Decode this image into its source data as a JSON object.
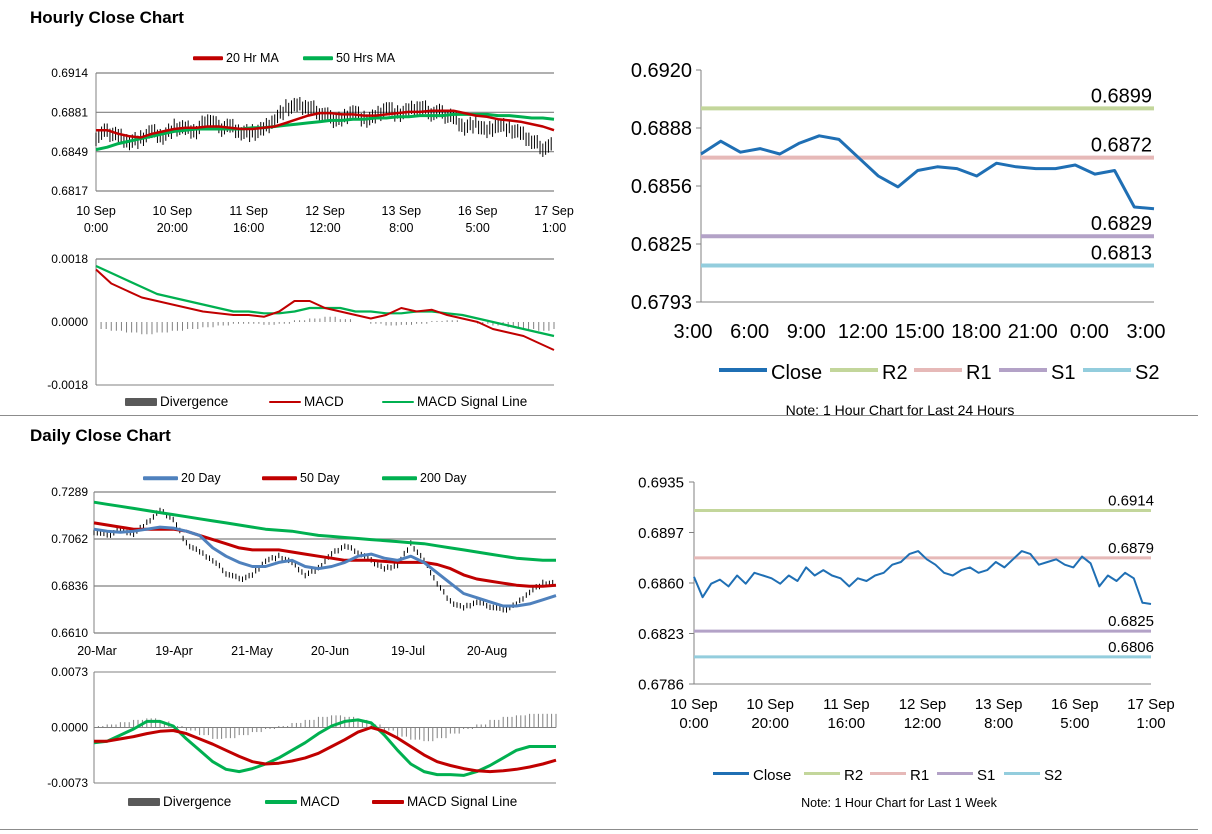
{
  "sections": {
    "hourly_title": "Hourly Close Chart",
    "daily_title": "Daily Close Chart"
  },
  "colors": {
    "ma20": "#c00000",
    "ma50": "#00b050",
    "price": "#000000",
    "divergence": "#808080",
    "macd_red": "#c00000",
    "signal_green": "#00b050",
    "close_blue": "#1f6fb4",
    "r2": "#c3d69b",
    "r1": "#e6b9b8",
    "s1": "#b3a2c7",
    "s2": "#93cddd",
    "daily_20": "#4f81bd",
    "daily_50": "#c00000",
    "daily_200": "#00b050"
  },
  "chart_data": [
    {
      "id": "hourly-price",
      "type": "line",
      "legend": [
        "20 Hr MA",
        "50 Hrs MA"
      ],
      "y_ticks": [
        "0.6914",
        "0.6881",
        "0.6849",
        "0.6817"
      ],
      "ylim": [
        0.6817,
        0.6914
      ],
      "x_ticks": [
        [
          "10 Sep",
          "0:00"
        ],
        [
          "10 Sep",
          "20:00"
        ],
        [
          "11 Sep",
          "16:00"
        ],
        [
          "12 Sep",
          "12:00"
        ],
        [
          "13 Sep",
          "8:00"
        ],
        [
          "16 Sep",
          "5:00"
        ],
        [
          "17 Sep",
          "1:00"
        ]
      ],
      "price": [
        0.6862,
        0.6866,
        0.6863,
        0.6858,
        0.686,
        0.6866,
        0.6862,
        0.6869,
        0.6868,
        0.6866,
        0.6877,
        0.6869,
        0.6871,
        0.6866,
        0.6865,
        0.6868,
        0.6876,
        0.6885,
        0.6887,
        0.6886,
        0.6882,
        0.6877,
        0.6876,
        0.6884,
        0.6876,
        0.6878,
        0.6886,
        0.688,
        0.6883,
        0.6886,
        0.6882,
        0.6881,
        0.6878,
        0.687,
        0.6873,
        0.6866,
        0.6872,
        0.6868,
        0.6864,
        0.6858,
        0.6853,
        0.6854
      ],
      "ma20": [
        0.6867,
        0.6867,
        0.6864,
        0.6862,
        0.6861,
        0.6864,
        0.6866,
        0.6868,
        0.6869,
        0.6869,
        0.687,
        0.687,
        0.6869,
        0.6868,
        0.6868,
        0.6869,
        0.687,
        0.6873,
        0.6876,
        0.6879,
        0.6881,
        0.6881,
        0.688,
        0.688,
        0.6879,
        0.6879,
        0.688,
        0.6881,
        0.6882,
        0.6882,
        0.6883,
        0.6883,
        0.6883,
        0.6881,
        0.6879,
        0.6878,
        0.6876,
        0.6875,
        0.6874,
        0.6872,
        0.687,
        0.6867
      ],
      "ma50": [
        0.6851,
        0.6853,
        0.6856,
        0.6858,
        0.686,
        0.6862,
        0.6864,
        0.6866,
        0.6867,
        0.6868,
        0.6868,
        0.6868,
        0.6868,
        0.6868,
        0.6869,
        0.6869,
        0.687,
        0.6871,
        0.6872,
        0.6873,
        0.6874,
        0.6875,
        0.6875,
        0.6876,
        0.6876,
        0.6877,
        0.6877,
        0.6878,
        0.6878,
        0.6879,
        0.6879,
        0.6879,
        0.688,
        0.688,
        0.688,
        0.688,
        0.6879,
        0.6879,
        0.6878,
        0.6877,
        0.6877,
        0.6876
      ]
    },
    {
      "id": "hourly-macd",
      "type": "line",
      "legend": [
        "Divergence",
        "MACD",
        "MACD Signal Line"
      ],
      "y_ticks": [
        "0.0018",
        "0.0000",
        "-0.0018"
      ],
      "ylim": [
        -0.0018,
        0.0018
      ],
      "divergence": [
        -0.0002,
        -0.00025,
        -0.0003,
        -0.00035,
        -0.0003,
        -0.00025,
        -0.0002,
        -0.00015,
        -0.0001,
        -5e-05,
        -5e-05,
        -8e-05,
        -5e-05,
        5e-05,
        0.0001,
        0.00015,
        8e-05,
        0.0,
        -5e-05,
        -0.0001,
        -8e-05,
        -5e-05,
        3e-05,
        5e-05,
        0.0,
        -5e-05,
        -0.0001,
        -0.00015,
        -0.0002,
        -0.00025,
        -0.0002
      ],
      "macd": [
        0.0015,
        0.0011,
        0.0009,
        0.0007,
        0.0006,
        0.0005,
        0.0004,
        0.0003,
        0.00025,
        0.0002,
        0.0002,
        0.00015,
        0.0003,
        0.0006,
        0.0006,
        0.0004,
        0.0003,
        0.0002,
        0.0001,
        0.0002,
        0.0004,
        0.0003,
        0.00035,
        0.0002,
        0.0001,
        0.0,
        -0.0002,
        -0.0003,
        -0.0004,
        -0.0006,
        -0.0008
      ],
      "signal": [
        0.0016,
        0.0014,
        0.0012,
        0.001,
        0.0008,
        0.0007,
        0.0006,
        0.0005,
        0.0004,
        0.0003,
        0.0003,
        0.00025,
        0.00025,
        0.0003,
        0.0004,
        0.0004,
        0.0004,
        0.0003,
        0.0003,
        0.00025,
        0.00025,
        0.0003,
        0.0003,
        0.00025,
        0.0002,
        0.0001,
        0.0,
        -0.0001,
        -0.0002,
        -0.0003,
        -0.0004
      ]
    },
    {
      "id": "hourly-close",
      "type": "line",
      "y_ticks": [
        "0.6920",
        "0.6888",
        "0.6856",
        "0.6825",
        "0.6793"
      ],
      "ylim": [
        0.6793,
        0.692
      ],
      "x_ticks": [
        "3:00",
        "6:00",
        "9:00",
        "12:00",
        "15:00",
        "18:00",
        "21:00",
        "0:00",
        "3:00"
      ],
      "levels": [
        {
          "name": "R2",
          "value": 0.6899,
          "label": "0.6899"
        },
        {
          "name": "R1",
          "value": 0.6872,
          "label": "0.6872"
        },
        {
          "name": "S1",
          "value": 0.6829,
          "label": "0.6829"
        },
        {
          "name": "S2",
          "value": 0.6813,
          "label": "0.6813"
        }
      ],
      "close": [
        0.6874,
        0.6881,
        0.6875,
        0.6877,
        0.6874,
        0.688,
        0.6884,
        0.6882,
        0.6872,
        0.6862,
        0.6856,
        0.6865,
        0.6867,
        0.6866,
        0.6862,
        0.6869,
        0.6867,
        0.6866,
        0.6866,
        0.6868,
        0.6863,
        0.6865,
        0.6845,
        0.6844
      ],
      "legend": [
        "Close",
        "R2",
        "R1",
        "S1",
        "S2"
      ],
      "note": "Note: 1 Hour Chart for Last 24 Hours"
    },
    {
      "id": "daily-price",
      "type": "line",
      "legend": [
        "20 Day",
        "50 Day",
        "200 Day"
      ],
      "y_ticks": [
        "0.7289",
        "0.7062",
        "0.6836",
        "0.6610"
      ],
      "ylim": [
        0.661,
        0.7289
      ],
      "x_ticks": [
        "20-Mar",
        "19-Apr",
        "21-May",
        "20-Jun",
        "19-Jul",
        "20-Aug"
      ],
      "price": [
        0.71,
        0.708,
        0.711,
        0.709,
        0.714,
        0.72,
        0.716,
        0.704,
        0.7,
        0.696,
        0.69,
        0.687,
        0.689,
        0.696,
        0.698,
        0.695,
        0.689,
        0.692,
        0.699,
        0.703,
        0.7,
        0.696,
        0.692,
        0.694,
        0.704,
        0.696,
        0.685,
        0.676,
        0.673,
        0.676,
        0.674,
        0.672,
        0.675,
        0.681,
        0.685,
        0.685
      ],
      "ma20": [
        0.711,
        0.71,
        0.7095,
        0.71,
        0.711,
        0.712,
        0.7115,
        0.71,
        0.708,
        0.702,
        0.698,
        0.695,
        0.693,
        0.693,
        0.695,
        0.696,
        0.693,
        0.692,
        0.693,
        0.695,
        0.698,
        0.699,
        0.697,
        0.696,
        0.698,
        0.695,
        0.69,
        0.685,
        0.68,
        0.678,
        0.676,
        0.674,
        0.674,
        0.675,
        0.677,
        0.679
      ],
      "ma50": [
        0.714,
        0.713,
        0.712,
        0.711,
        0.711,
        0.711,
        0.711,
        0.71,
        0.708,
        0.706,
        0.704,
        0.702,
        0.701,
        0.701,
        0.701,
        0.7,
        0.699,
        0.698,
        0.697,
        0.696,
        0.696,
        0.696,
        0.6955,
        0.695,
        0.695,
        0.695,
        0.694,
        0.692,
        0.689,
        0.687,
        0.686,
        0.685,
        0.684,
        0.6835,
        0.6835,
        0.684
      ],
      "ma200": [
        0.724,
        0.723,
        0.722,
        0.721,
        0.72,
        0.719,
        0.718,
        0.717,
        0.716,
        0.715,
        0.714,
        0.713,
        0.712,
        0.711,
        0.7105,
        0.71,
        0.709,
        0.708,
        0.7075,
        0.707,
        0.7065,
        0.706,
        0.7055,
        0.705,
        0.7045,
        0.704,
        0.703,
        0.702,
        0.701,
        0.7,
        0.699,
        0.698,
        0.697,
        0.6965,
        0.696,
        0.696
      ]
    },
    {
      "id": "daily-macd",
      "type": "line",
      "legend": [
        "Divergence",
        "MACD",
        "MACD Signal Line"
      ],
      "y_ticks": [
        "0.0073",
        "0.0000",
        "-0.0073"
      ],
      "ylim": [
        -0.0073,
        0.0073
      ],
      "divergence": [
        0.0002,
        0.0004,
        0.0007,
        0.001,
        0.0012,
        0.0008,
        0.0002,
        -0.0004,
        -0.001,
        -0.0015,
        -0.0014,
        -0.001,
        -0.0006,
        -0.0002,
        0.0002,
        0.0006,
        0.001,
        0.0014,
        0.0016,
        0.0014,
        0.001,
        0.0004,
        -0.0004,
        -0.0012,
        -0.0016,
        -0.0018,
        -0.0014,
        -0.0008,
        -0.0002,
        0.0004,
        0.001,
        0.0014,
        0.0016,
        0.0018,
        0.0018,
        0.0018
      ],
      "macd": [
        -0.002,
        -0.0018,
        -0.001,
        -0.0002,
        0.0008,
        0.0008,
        0.0002,
        -0.0015,
        -0.003,
        -0.0045,
        -0.0055,
        -0.0058,
        -0.0054,
        -0.0048,
        -0.004,
        -0.003,
        -0.002,
        -0.0008,
        0.0002,
        0.0008,
        0.001,
        0.0006,
        -0.001,
        -0.003,
        -0.0048,
        -0.0058,
        -0.0062,
        -0.0062,
        -0.0063,
        -0.0058,
        -0.005,
        -0.004,
        -0.003,
        -0.0025,
        -0.0025,
        -0.0025
      ],
      "signal": [
        -0.0018,
        -0.0018,
        -0.0015,
        -0.0012,
        -0.0008,
        -0.0005,
        -0.0004,
        -0.0008,
        -0.0015,
        -0.0022,
        -0.003,
        -0.0038,
        -0.0045,
        -0.0048,
        -0.0047,
        -0.0044,
        -0.004,
        -0.0034,
        -0.0025,
        -0.0016,
        -0.0006,
        0.0,
        -0.0005,
        -0.0014,
        -0.0025,
        -0.0036,
        -0.0045,
        -0.005,
        -0.0054,
        -0.0057,
        -0.0058,
        -0.0057,
        -0.0055,
        -0.0052,
        -0.0048,
        -0.0043
      ]
    },
    {
      "id": "weekly-close",
      "type": "line",
      "y_ticks": [
        "0.6935",
        "0.6897",
        "0.6860",
        "0.6823",
        "0.6786"
      ],
      "ylim": [
        0.6786,
        0.6935
      ],
      "x_ticks": [
        [
          "10 Sep",
          "0:00"
        ],
        [
          "10 Sep",
          "20:00"
        ],
        [
          "11 Sep",
          "16:00"
        ],
        [
          "12 Sep",
          "12:00"
        ],
        [
          "13 Sep",
          "8:00"
        ],
        [
          "16 Sep",
          "5:00"
        ],
        [
          "17 Sep",
          "1:00"
        ]
      ],
      "levels": [
        {
          "name": "R2",
          "value": 0.6914,
          "label": "0.6914"
        },
        {
          "name": "R1",
          "value": 0.6879,
          "label": "0.6879"
        },
        {
          "name": "S1",
          "value": 0.6825,
          "label": "0.6825"
        },
        {
          "name": "S2",
          "value": 0.6806,
          "label": "0.6806"
        }
      ],
      "close": [
        0.6865,
        0.685,
        0.686,
        0.6863,
        0.6858,
        0.6866,
        0.686,
        0.6868,
        0.6866,
        0.6864,
        0.686,
        0.6866,
        0.6862,
        0.6872,
        0.6866,
        0.687,
        0.6866,
        0.6864,
        0.6858,
        0.6864,
        0.6862,
        0.6866,
        0.6868,
        0.6874,
        0.6876,
        0.6882,
        0.6884,
        0.6878,
        0.6874,
        0.6868,
        0.6866,
        0.687,
        0.6872,
        0.6868,
        0.687,
        0.6876,
        0.6872,
        0.6878,
        0.6884,
        0.6882,
        0.6874,
        0.6876,
        0.6878,
        0.6874,
        0.6872,
        0.688,
        0.6875,
        0.6858,
        0.6866,
        0.6862,
        0.6868,
        0.6864,
        0.6846,
        0.6845
      ],
      "legend": [
        "Close",
        "R2",
        "R1",
        "S1",
        "S2"
      ],
      "note": "Note: 1 Hour Chart for Last 1 Week"
    }
  ]
}
